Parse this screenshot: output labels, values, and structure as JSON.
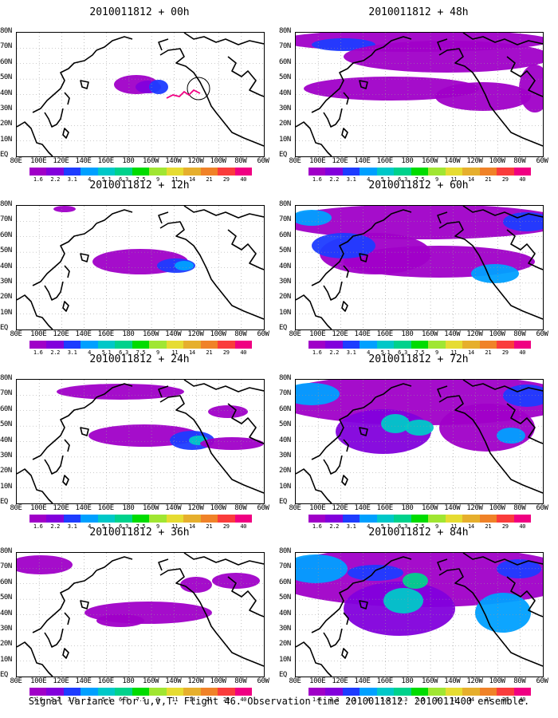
{
  "panels": [
    {
      "title": "2010011812 + 00h"
    },
    {
      "title": "2010011812 + 48h"
    },
    {
      "title": "2010011812 + 12h"
    },
    {
      "title": "2010011812 + 60h"
    },
    {
      "title": "2010011812 + 24h"
    },
    {
      "title": "2010011812 + 72h"
    },
    {
      "title": "2010011812 + 36h"
    },
    {
      "title": "2010011812 + 84h"
    }
  ],
  "lat_labels": [
    "80N",
    "70N",
    "60N",
    "50N",
    "40N",
    "30N",
    "20N",
    "10N",
    "EQ"
  ],
  "lon_labels": [
    "80E",
    "100E",
    "120E",
    "140E",
    "160E",
    "180",
    "160W",
    "140W",
    "120W",
    "100W",
    "80W",
    "60W"
  ],
  "colorbar": {
    "levels": [
      "1.6",
      "2.2",
      "3.1",
      "4",
      "5.1",
      "6.3",
      "7.5",
      "9",
      "11",
      "14",
      "21",
      "29",
      "40"
    ],
    "colors": [
      "#a000c8",
      "#8200dc",
      "#1e3cff",
      "#00a0ff",
      "#00c8c8",
      "#00d28c",
      "#00dc00",
      "#a0e632",
      "#e6dc32",
      "#e6af2d",
      "#f08228",
      "#fa3c3c",
      "#f00082"
    ]
  },
  "caption": "Signal Variance for u,v,T. Flight 46. Observation time 2010011812. 2010011400 ensemble."
}
